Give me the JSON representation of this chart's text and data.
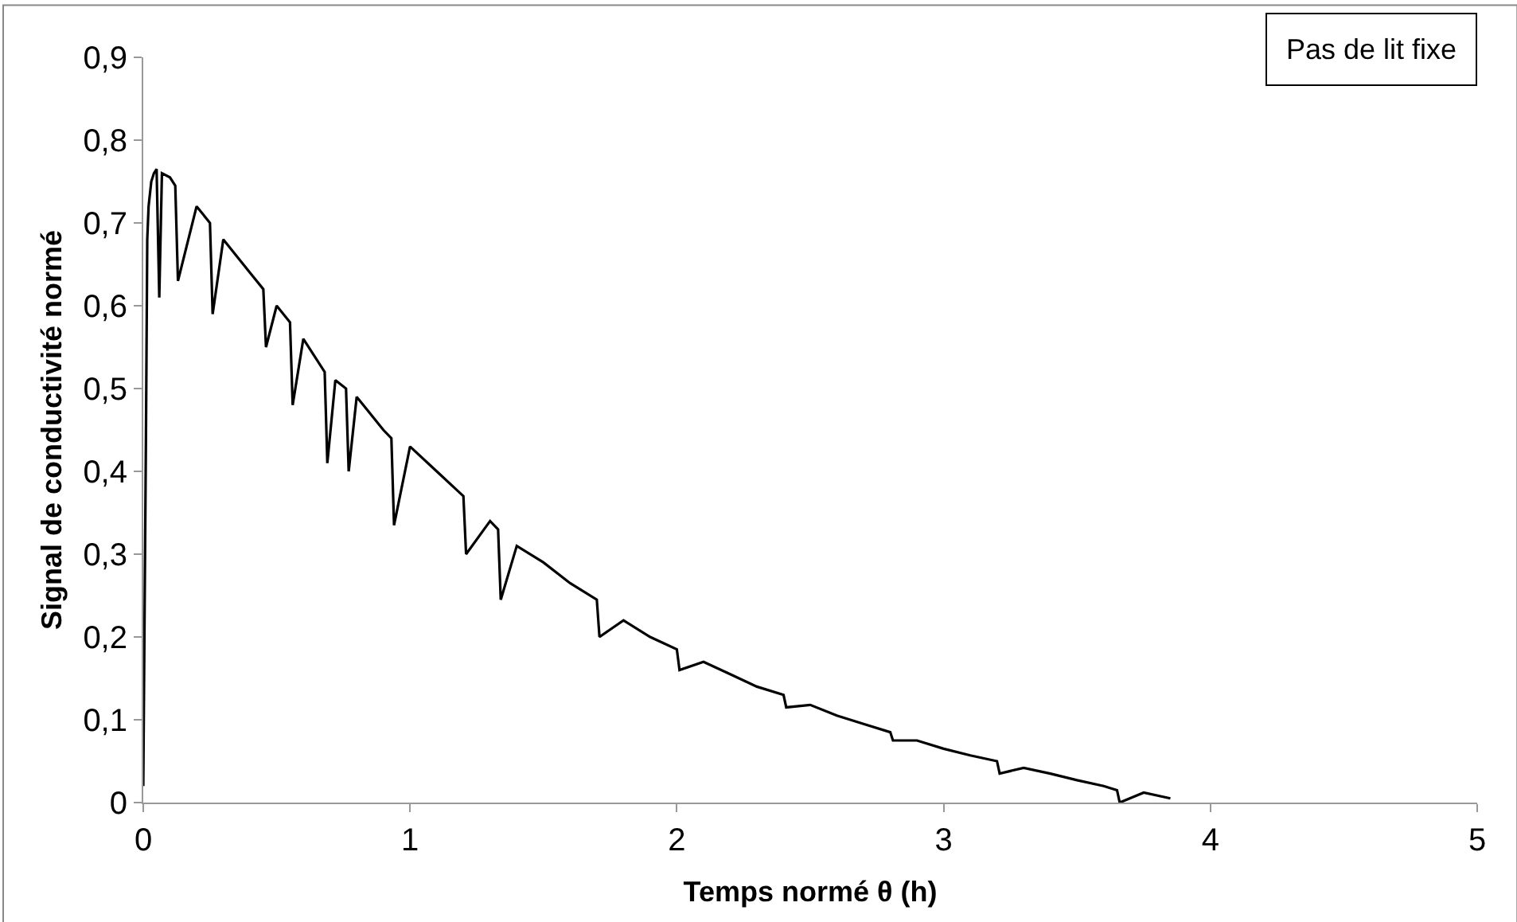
{
  "chart_data": {
    "type": "line",
    "xlabel": "Temps normé θ (h)",
    "ylabel": "Signal de conductivité normé",
    "annotations": [
      "Pas de lit fixe"
    ],
    "x": [
      0,
      0.01,
      0.015,
      0.02,
      0.03,
      0.04,
      0.05,
      0.06,
      0.07,
      0.1,
      0.12,
      0.13,
      0.2,
      0.25,
      0.26,
      0.3,
      0.4,
      0.45,
      0.46,
      0.5,
      0.55,
      0.56,
      0.6,
      0.68,
      0.69,
      0.72,
      0.76,
      0.77,
      0.8,
      0.9,
      0.93,
      0.94,
      1.0,
      1.1,
      1.2,
      1.21,
      1.3,
      1.33,
      1.34,
      1.4,
      1.5,
      1.6,
      1.7,
      1.71,
      1.8,
      1.9,
      2.0,
      2.01,
      2.1,
      2.2,
      2.3,
      2.4,
      2.41,
      2.5,
      2.6,
      2.7,
      2.8,
      2.81,
      2.9,
      3.0,
      3.1,
      3.2,
      3.21,
      3.3,
      3.4,
      3.5,
      3.6,
      3.65,
      3.66,
      3.75,
      3.85
    ],
    "series": [
      {
        "color": "#000000",
        "values": [
          0.02,
          0.44,
          0.68,
          0.72,
          0.75,
          0.76,
          0.765,
          0.61,
          0.76,
          0.755,
          0.745,
          0.63,
          0.72,
          0.7,
          0.59,
          0.68,
          0.64,
          0.62,
          0.55,
          0.6,
          0.58,
          0.48,
          0.56,
          0.52,
          0.41,
          0.51,
          0.5,
          0.4,
          0.49,
          0.45,
          0.44,
          0.335,
          0.43,
          0.4,
          0.37,
          0.3,
          0.34,
          0.33,
          0.245,
          0.31,
          0.29,
          0.265,
          0.245,
          0.2,
          0.22,
          0.2,
          0.185,
          0.16,
          0.17,
          0.155,
          0.14,
          0.13,
          0.115,
          0.118,
          0.105,
          0.095,
          0.085,
          0.075,
          0.075,
          0.065,
          0.057,
          0.05,
          0.035,
          0.042,
          0.035,
          0.027,
          0.02,
          0.015,
          0.0,
          0.012,
          0.005
        ]
      }
    ],
    "xlim": [
      0,
      5
    ],
    "xticks": [
      0,
      1,
      2,
      3,
      4,
      5
    ],
    "ylim": [
      0,
      0.9
    ],
    "yticks": [
      0,
      {
        "value": 0.1,
        "label": "0,1"
      },
      {
        "value": 0.2,
        "label": "0,2"
      },
      {
        "value": 0.3,
        "label": "0,3"
      },
      {
        "value": 0.4,
        "label": "0,4"
      },
      {
        "value": 0.5,
        "label": "0,5"
      },
      {
        "value": 0.6,
        "label": "0,6"
      },
      {
        "value": 0.7,
        "label": "0,7"
      },
      {
        "value": 0.8,
        "label": "0,8"
      },
      {
        "value": 0.9,
        "label": "0,9"
      }
    ],
    "marker": "none",
    "line_style": "solid"
  }
}
